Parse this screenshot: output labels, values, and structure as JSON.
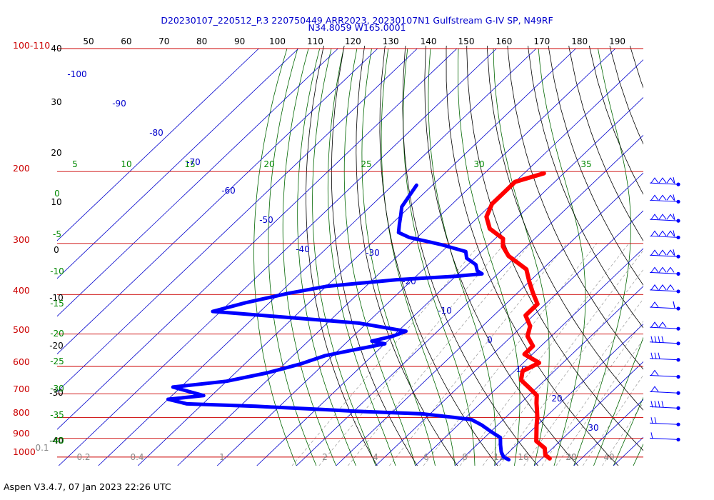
{
  "header": {
    "title_line1": "D20230107_220512_P.3 220750449 ARR2023, 20230107N1 Gulfstream G-IV SP, N49RF",
    "title_line2": "N34.8059 W165.0001"
  },
  "footer": {
    "version": "Aspen V3.4.7, 07 Jan 2023  22:26 UTC"
  },
  "colors": {
    "title": "#0000cc",
    "isobar": "#cc0000",
    "isotherm": "#0000cc",
    "dry_adiabat": "#000000",
    "moist_adiabat": "#006600",
    "mixing_ratio": "#999999",
    "temperature": "#ff0000",
    "dewpoint": "#0000ff",
    "theta_label": "#000000",
    "theta_e_label": "#008800",
    "mixing_ratio_label": "#888888"
  },
  "chart_data": {
    "type": "skew-t log-p sounding",
    "pressure_labels": [
      {
        "text": "100-110"
      },
      {
        "text": "200"
      },
      {
        "text": "300"
      },
      {
        "text": "400"
      },
      {
        "text": "500"
      },
      {
        "text": "600"
      },
      {
        "text": "700"
      },
      {
        "text": "800"
      },
      {
        "text": "900"
      },
      {
        "text": "1000"
      }
    ],
    "isobar_values_hpa": [
      100,
      200,
      300,
      400,
      500,
      600,
      700,
      800,
      900,
      1000
    ],
    "theta_top_labels": [
      "50",
      "60",
      "70",
      "80",
      "90",
      "100",
      "110",
      "120",
      "130",
      "140",
      "150",
      "160",
      "170",
      "180",
      "190"
    ],
    "left_height_labels": [
      "40",
      "30",
      "20",
      "10",
      "0",
      "-10",
      "-20",
      "-30",
      "-40"
    ],
    "theta_e_labels": [
      {
        "text": "5"
      },
      {
        "text": "10"
      },
      {
        "text": "15"
      },
      {
        "text": "20"
      },
      {
        "text": "25"
      },
      {
        "text": "30"
      },
      {
        "text": "35"
      }
    ],
    "theta_e_left_labels": [
      "0",
      "-5",
      "-10",
      "-15",
      "-20",
      "-25",
      "-30",
      "-35",
      "-40"
    ],
    "isotherm_labels": [
      "-100",
      "-90",
      "-80",
      "-70",
      "-60",
      "-50",
      "-40",
      "-30",
      "-20",
      "-10",
      "0",
      "10",
      "20",
      "30"
    ],
    "mixing_ratio_labels": [
      "0.1",
      "0.2",
      "0.4",
      "1",
      "2",
      "4",
      "6",
      "8",
      "12",
      "16",
      "20",
      "30",
      "40"
    ],
    "temperature_profile": [
      {
        "p": 202,
        "t": -55
      },
      {
        "p": 212,
        "t": -60
      },
      {
        "p": 226,
        "t": -60
      },
      {
        "p": 240,
        "t": -60
      },
      {
        "p": 258,
        "t": -58
      },
      {
        "p": 276,
        "t": -54
      },
      {
        "p": 292,
        "t": -48
      },
      {
        "p": 305,
        "t": -46
      },
      {
        "p": 322,
        "t": -42
      },
      {
        "p": 347,
        "t": -34
      },
      {
        "p": 372,
        "t": -30
      },
      {
        "p": 397,
        "t": -26
      },
      {
        "p": 422,
        "t": -22
      },
      {
        "p": 450,
        "t": -22
      },
      {
        "p": 478,
        "t": -18
      },
      {
        "p": 506,
        "t": -16
      },
      {
        "p": 535,
        "t": -12
      },
      {
        "p": 560,
        "t": -12
      },
      {
        "p": 588,
        "t": -6
      },
      {
        "p": 616,
        "t": -8
      },
      {
        "p": 648,
        "t": -6
      },
      {
        "p": 676,
        "t": -2
      },
      {
        "p": 706,
        "t": 2
      },
      {
        "p": 738,
        "t": 4
      },
      {
        "p": 768,
        "t": 6
      },
      {
        "p": 800,
        "t": 8
      },
      {
        "p": 838,
        "t": 10
      },
      {
        "p": 875,
        "t": 12
      },
      {
        "p": 914,
        "t": 14
      },
      {
        "p": 951,
        "t": 18
      },
      {
        "p": 989,
        "t": 20
      },
      {
        "p": 1008,
        "t": 22
      }
    ],
    "dewpoint_profile": [
      {
        "p": 216,
        "t": -84
      },
      {
        "p": 244,
        "t": -82
      },
      {
        "p": 256,
        "t": -80
      },
      {
        "p": 269,
        "t": -78
      },
      {
        "p": 282,
        "t": -76
      },
      {
        "p": 290,
        "t": -72
      },
      {
        "p": 297,
        "t": -66
      },
      {
        "p": 302,
        "t": -62
      },
      {
        "p": 314,
        "t": -54
      },
      {
        "p": 326,
        "t": -52
      },
      {
        "p": 338,
        "t": -48
      },
      {
        "p": 350,
        "t": -46
      },
      {
        "p": 356,
        "t": -44
      },
      {
        "p": 361,
        "t": -50
      },
      {
        "p": 368,
        "t": -64
      },
      {
        "p": 382,
        "t": -80
      },
      {
        "p": 398,
        "t": -88
      },
      {
        "p": 419,
        "t": -96
      },
      {
        "p": 440,
        "t": -102
      },
      {
        "p": 470,
        "t": -62
      },
      {
        "p": 492,
        "t": -48
      },
      {
        "p": 506,
        "t": -50
      },
      {
        "p": 520,
        "t": -54
      },
      {
        "p": 528,
        "t": -50
      },
      {
        "p": 546,
        "t": -56
      },
      {
        "p": 565,
        "t": -62
      },
      {
        "p": 592,
        "t": -66
      },
      {
        "p": 622,
        "t": -72
      },
      {
        "p": 652,
        "t": -80
      },
      {
        "p": 674,
        "t": -92
      },
      {
        "p": 707,
        "t": -82
      },
      {
        "p": 722,
        "t": -90
      },
      {
        "p": 741,
        "t": -84
      },
      {
        "p": 751,
        "t": -66
      },
      {
        "p": 765,
        "t": -48
      },
      {
        "p": 772,
        "t": -40
      },
      {
        "p": 784,
        "t": -22
      },
      {
        "p": 798,
        "t": -14
      },
      {
        "p": 810,
        "t": -8
      },
      {
        "p": 835,
        "t": -4
      },
      {
        "p": 866,
        "t": 0
      },
      {
        "p": 896,
        "t": 4
      },
      {
        "p": 934,
        "t": 6
      },
      {
        "p": 971,
        "t": 8
      },
      {
        "p": 1000,
        "t": 10
      },
      {
        "p": 1015,
        "t": 12
      }
    ],
    "wind_barbs": [
      {
        "p": 215,
        "kind": "pennants3_barb"
      },
      {
        "p": 237,
        "kind": "pennants3_barb"
      },
      {
        "p": 264,
        "kind": "pennants3_barb"
      },
      {
        "p": 290,
        "kind": "pennants3_barb"
      },
      {
        "p": 323,
        "kind": "pennants3_barb"
      },
      {
        "p": 356,
        "kind": "pennants3"
      },
      {
        "p": 393,
        "kind": "pennants3"
      },
      {
        "p": 433,
        "kind": "pennant1_barbs2"
      },
      {
        "p": 485,
        "kind": "pennants2"
      },
      {
        "p": 527,
        "kind": "barbs4"
      },
      {
        "p": 578,
        "kind": "barbs3"
      },
      {
        "p": 636,
        "kind": "pennant1"
      },
      {
        "p": 697,
        "kind": "pennant1"
      },
      {
        "p": 759,
        "kind": "barbs4"
      },
      {
        "p": 832,
        "kind": "barbs2"
      },
      {
        "p": 906,
        "kind": "barbs1"
      }
    ]
  }
}
